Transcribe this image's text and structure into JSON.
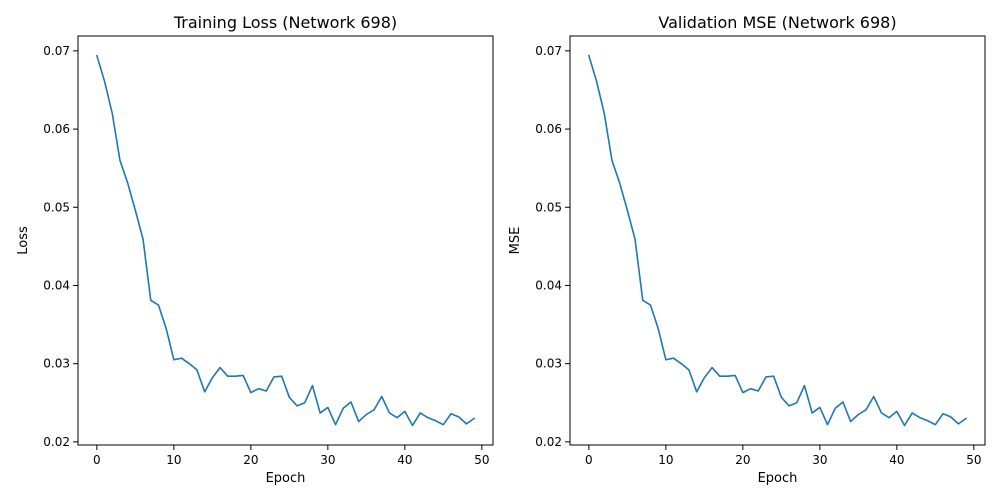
{
  "chart_data": [
    {
      "type": "line",
      "title": "Training Loss (Network 698)",
      "xlabel": "Epoch",
      "ylabel": "Loss",
      "xlim": [
        -2.45,
        51.45
      ],
      "ylim": [
        0.0196,
        0.0719
      ],
      "xticks": [
        0,
        10,
        20,
        30,
        40,
        50
      ],
      "yticks": [
        0.02,
        0.03,
        0.04,
        0.05,
        0.06,
        0.07
      ],
      "ytick_labels": [
        "0.02",
        "0.03",
        "0.04",
        "0.05",
        "0.06",
        "0.07"
      ],
      "grid": false,
      "color": "#1f77b4",
      "series": [
        {
          "x": [
            0,
            1,
            2,
            3,
            4,
            5,
            6,
            7,
            8,
            9,
            10,
            11,
            12,
            13,
            14,
            15,
            16,
            17,
            18,
            19,
            20,
            21,
            22,
            23,
            24,
            25,
            26,
            27,
            28,
            29,
            30,
            31,
            32,
            33,
            34,
            35,
            36,
            37,
            38,
            39,
            40,
            41,
            42,
            43,
            44,
            45,
            46,
            47,
            48,
            49
          ],
          "values": [
            0.0694,
            0.0661,
            0.062,
            0.056,
            0.0531,
            0.0496,
            0.0459,
            0.0381,
            0.0375,
            0.0345,
            0.0305,
            0.0307,
            0.03,
            0.0292,
            0.0264,
            0.0282,
            0.0295,
            0.0284,
            0.0284,
            0.0285,
            0.0263,
            0.0268,
            0.0265,
            0.0283,
            0.0284,
            0.0257,
            0.0246,
            0.025,
            0.0272,
            0.0237,
            0.0244,
            0.0222,
            0.0243,
            0.0251,
            0.0226,
            0.0235,
            0.0241,
            0.0258,
            0.0237,
            0.0231,
            0.0239,
            0.0221,
            0.0237,
            0.0231,
            0.0227,
            0.0222,
            0.0236,
            0.0232,
            0.0223,
            0.023
          ]
        }
      ]
    },
    {
      "type": "line",
      "title": "Validation MSE (Network 698)",
      "xlabel": "Epoch",
      "ylabel": "MSE",
      "xlim": [
        -2.45,
        51.45
      ],
      "ylim": [
        0.0196,
        0.0719
      ],
      "xticks": [
        0,
        10,
        20,
        30,
        40,
        50
      ],
      "yticks": [
        0.02,
        0.03,
        0.04,
        0.05,
        0.06,
        0.07
      ],
      "ytick_labels": [
        "0.02",
        "0.03",
        "0.04",
        "0.05",
        "0.06",
        "0.07"
      ],
      "grid": false,
      "color": "#1f77b4",
      "series": [
        {
          "x": [
            0,
            1,
            2,
            3,
            4,
            5,
            6,
            7,
            8,
            9,
            10,
            11,
            12,
            13,
            14,
            15,
            16,
            17,
            18,
            19,
            20,
            21,
            22,
            23,
            24,
            25,
            26,
            27,
            28,
            29,
            30,
            31,
            32,
            33,
            34,
            35,
            36,
            37,
            38,
            39,
            40,
            41,
            42,
            43,
            44,
            45,
            46,
            47,
            48,
            49
          ],
          "values": [
            0.0694,
            0.0661,
            0.062,
            0.056,
            0.0531,
            0.0496,
            0.0459,
            0.0381,
            0.0375,
            0.0345,
            0.0305,
            0.0307,
            0.03,
            0.0292,
            0.0264,
            0.0282,
            0.0295,
            0.0284,
            0.0284,
            0.0285,
            0.0263,
            0.0268,
            0.0265,
            0.0283,
            0.0284,
            0.0257,
            0.0246,
            0.025,
            0.0272,
            0.0237,
            0.0244,
            0.0222,
            0.0243,
            0.0251,
            0.0226,
            0.0235,
            0.0241,
            0.0258,
            0.0237,
            0.0231,
            0.0239,
            0.0221,
            0.0237,
            0.0231,
            0.0227,
            0.0222,
            0.0236,
            0.0232,
            0.0223,
            0.023
          ]
        }
      ]
    }
  ]
}
